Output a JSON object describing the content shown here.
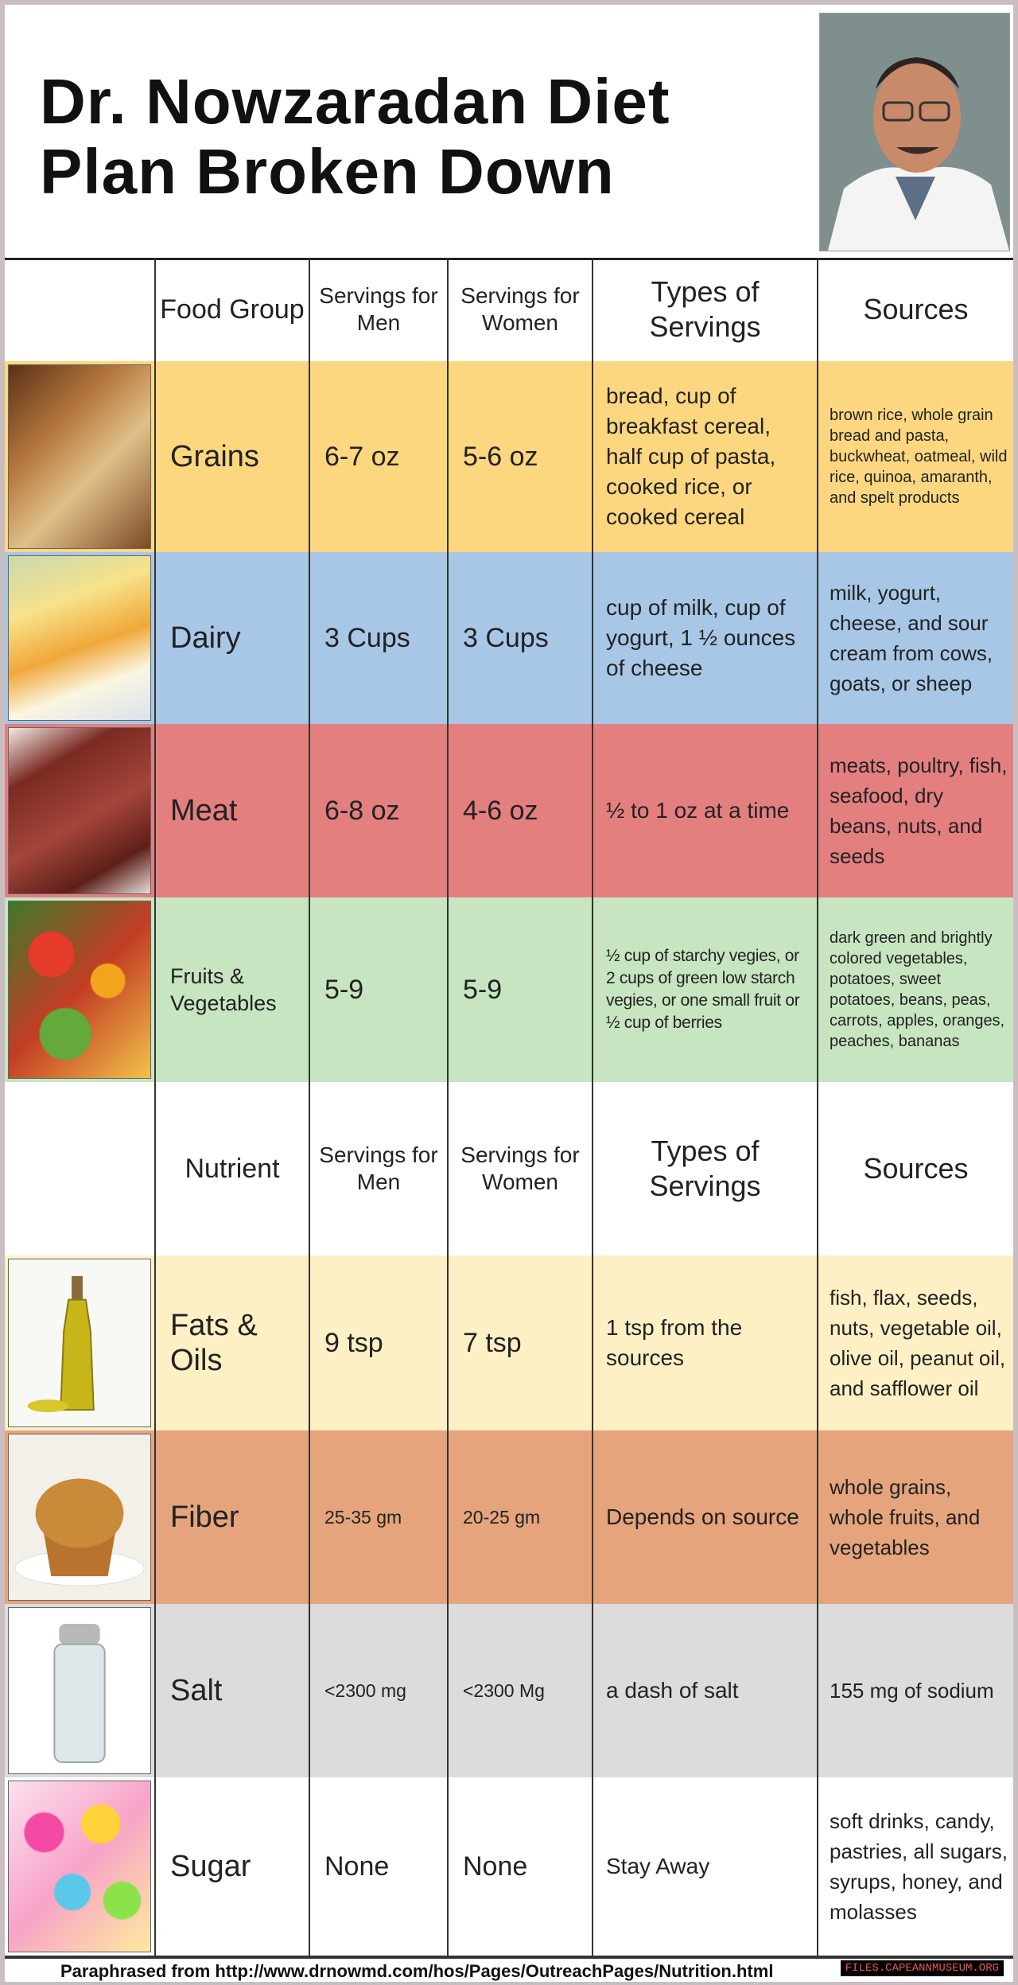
{
  "title": {
    "line1": "Dr. Nowzaradan Diet",
    "line2": "Plan Broken Down"
  },
  "food_header": {
    "col1": "Food Group",
    "col2": "Servings for Men",
    "col3": "Servings for Women",
    "col4": "Types of Servings",
    "col5": "Sources"
  },
  "food_rows": [
    {
      "name": "Grains",
      "men": "6-7 oz",
      "women": "5-6 oz",
      "types": "bread, cup of breakfast cereal, half cup of pasta, cooked rice, or cooked cereal",
      "sources": "brown rice, whole grain bread and pasta, buckwheat, oatmeal, wild rice, quinoa, amaranth, and spelt products"
    },
    {
      "name": "Dairy",
      "men": "3 Cups",
      "women": "3 Cups",
      "types": "cup of milk, cup of yogurt, 1 ½ ounces of cheese",
      "sources": "milk, yogurt, cheese, and sour cream from cows, goats, or sheep"
    },
    {
      "name": "Meat",
      "men": "6-8 oz",
      "women": "4-6 oz",
      "types": "½ to 1 oz at a time",
      "sources": "meats, poultry, fish, seafood, dry beans, nuts, and seeds"
    },
    {
      "name": "Fruits & Vegetables",
      "men": "5-9",
      "women": "5-9",
      "types": "½ cup of starchy vegies, or 2 cups of green low starch vegies, or one small fruit or ½ cup of berries",
      "sources": "dark green and brightly colored vegetables, potatoes, sweet potatoes, beans, peas, carrots, apples, oranges, peaches, bananas"
    }
  ],
  "nutrient_header": {
    "col1": "Nutrient",
    "col2": "Servings for Men",
    "col3": "Servings for Women",
    "col4": "Types of Servings",
    "col5": "Sources"
  },
  "nutrient_rows": [
    {
      "name": "Fats & Oils",
      "men": "9 tsp",
      "women": "7 tsp",
      "types": "1 tsp from the sources",
      "sources": "fish, flax, seeds, nuts, vegetable oil, olive oil, peanut oil, and safflower oil"
    },
    {
      "name": "Fiber",
      "men": "25-35 gm",
      "women": "20-25 gm",
      "types": "Depends on source",
      "sources": "whole grains, whole fruits, and vegetables"
    },
    {
      "name": "Salt",
      "men": "<2300 mg",
      "women": "<2300 Mg",
      "types": "a dash of salt",
      "sources": "155 mg of sodium"
    },
    {
      "name": "Sugar",
      "men": "None",
      "women": "None",
      "types": "Stay Away",
      "sources": "soft drinks, candy, pastries, all sugars, syrups, honey, and molasses"
    }
  ],
  "footer": "Paraphrased from http://www.drnowmd.com/hos/Pages/OutreachPages/Nutrition.html",
  "watermark": "FILES.CAPEANNMUSEUM.ORG",
  "colors": {
    "grains": "#fcd77f",
    "dairy": "#a8c7e6",
    "meat": "#e47f80",
    "fruits": "#c7e5c0",
    "fats": "#fdf0c4",
    "fiber": "#e5a47c",
    "salt": "#dcdcdc",
    "sugar": "#ffffff"
  }
}
